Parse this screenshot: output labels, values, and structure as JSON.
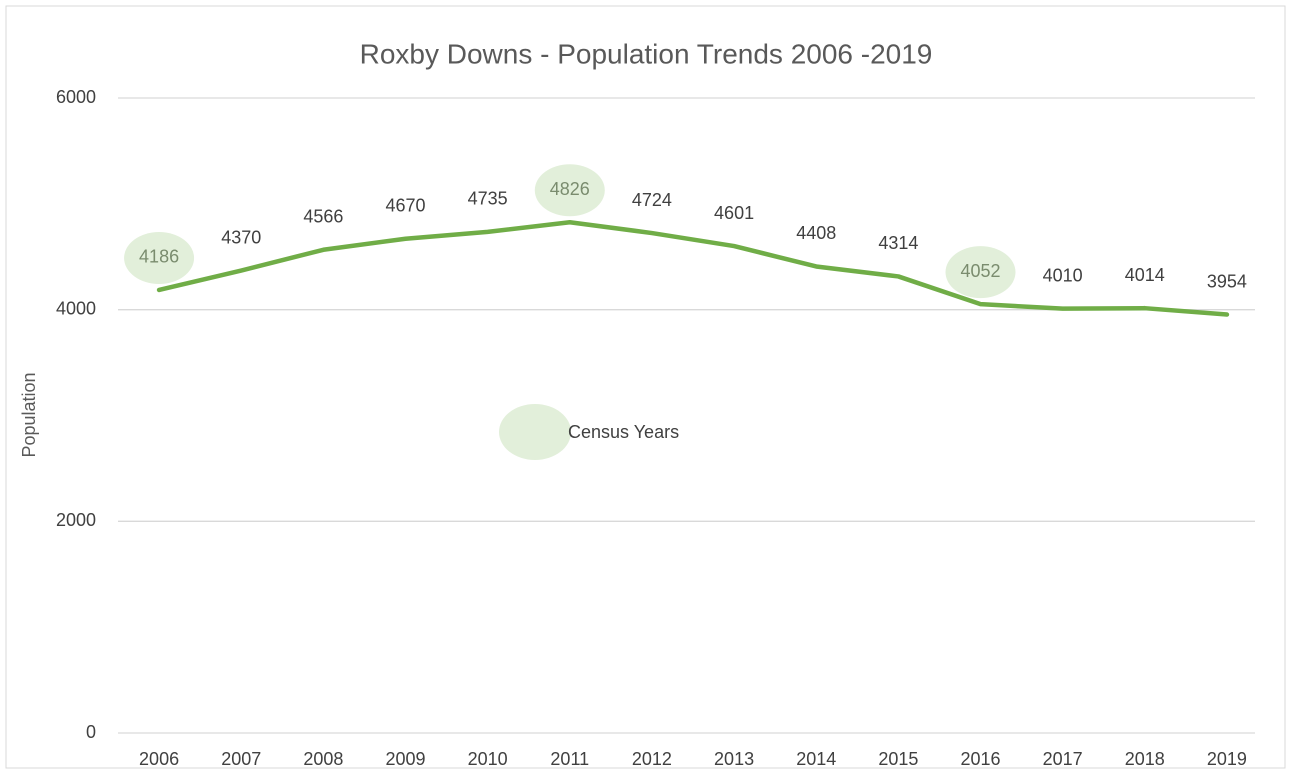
{
  "chart_data": {
    "type": "line",
    "title": "Roxby Downs - Population Trends 2006 -2019",
    "y_label": "Population",
    "categories": [
      "2006",
      "2007",
      "2008",
      "2009",
      "2010",
      "2011",
      "2012",
      "2013",
      "2014",
      "2015",
      "2016",
      "2017",
      "2018",
      "2019"
    ],
    "series": [
      {
        "name": "Population",
        "color": "#70ad47",
        "values": [
          4186,
          4370,
          4566,
          4670,
          4735,
          4826,
          4724,
          4601,
          4408,
          4314,
          4052,
          4010,
          4014,
          3954
        ]
      }
    ],
    "ylim": [
      0,
      6000
    ],
    "yticks": [
      0,
      2000,
      4000,
      6000
    ],
    "grid": true,
    "annotation": {
      "label": "Census Years",
      "color": "#e2efda",
      "categories": [
        "2006",
        "2011",
        "2016"
      ]
    }
  }
}
